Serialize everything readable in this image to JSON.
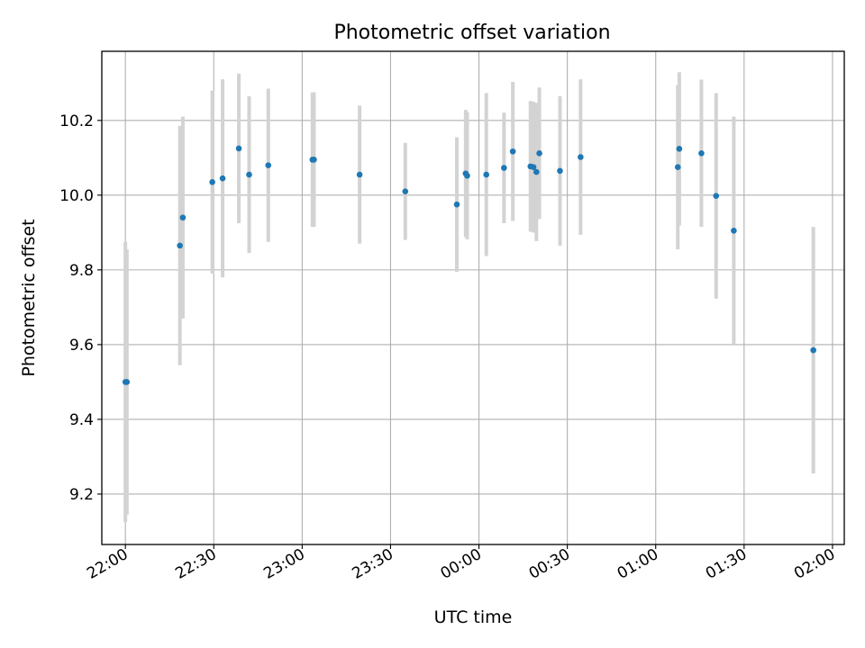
{
  "chart_data": {
    "type": "scatter",
    "title": "Photometric offset variation",
    "xlabel": "UTC time",
    "ylabel": "Photometric offset",
    "x_axis_type": "time",
    "xlim": [
      "21:52",
      "02:04"
    ],
    "ylim": [
      9.065,
      10.385
    ],
    "x_ticks": [
      "22:00",
      "22:30",
      "23:00",
      "23:30",
      "00:00",
      "00:30",
      "01:00",
      "01:30",
      "02:00"
    ],
    "y_ticks": [
      "9.2",
      "9.4",
      "9.6",
      "9.8",
      "10.0",
      "10.2"
    ],
    "grid": true,
    "legend": "none",
    "marker_color": "#1f77b4",
    "errorbar_color": "#d3d3d3",
    "points": [
      {
        "x": "22:00",
        "y": 9.5,
        "err": 0.375
      },
      {
        "x": "22:00:30",
        "y": 9.5,
        "err": 0.355
      },
      {
        "x": "22:18:30",
        "y": 9.865,
        "err": 0.32
      },
      {
        "x": "22:19:30",
        "y": 9.94,
        "err": 0.27
      },
      {
        "x": "22:29:30",
        "y": 10.035,
        "err": 0.245
      },
      {
        "x": "22:33",
        "y": 10.045,
        "err": 0.265
      },
      {
        "x": "22:38:30",
        "y": 10.125,
        "err": 0.2
      },
      {
        "x": "22:42",
        "y": 10.055,
        "err": 0.21
      },
      {
        "x": "22:48:30",
        "y": 10.08,
        "err": 0.205
      },
      {
        "x": "23:03:30",
        "y": 10.095,
        "err": 0.18
      },
      {
        "x": "23:04",
        "y": 10.095,
        "err": 0.18
      },
      {
        "x": "23:19:30",
        "y": 10.055,
        "err": 0.185
      },
      {
        "x": "23:35",
        "y": 10.01,
        "err": 0.13
      },
      {
        "x": "23:52:30",
        "y": 9.975,
        "err": 0.18
      },
      {
        "x": "23:55:30",
        "y": 10.058,
        "err": 0.17
      },
      {
        "x": "23:56",
        "y": 10.052,
        "err": 0.17
      },
      {
        "x": "00:02:30",
        "y": 10.055,
        "err": 0.218
      },
      {
        "x": "00:08:30",
        "y": 10.073,
        "err": 0.148
      },
      {
        "x": "00:11:30",
        "y": 10.117,
        "err": 0.186
      },
      {
        "x": "00:17:30",
        "y": 10.077,
        "err": 0.175
      },
      {
        "x": "00:18:30",
        "y": 10.075,
        "err": 0.175
      },
      {
        "x": "00:19:30",
        "y": 10.062,
        "err": 0.185
      },
      {
        "x": "00:20:30",
        "y": 10.112,
        "err": 0.176
      },
      {
        "x": "00:27:30",
        "y": 10.065,
        "err": 0.2
      },
      {
        "x": "00:34:30",
        "y": 10.102,
        "err": 0.208
      },
      {
        "x": "01:07:30",
        "y": 10.075,
        "err": 0.22
      },
      {
        "x": "01:08",
        "y": 10.124,
        "err": 0.205
      },
      {
        "x": "01:15:30",
        "y": 10.112,
        "err": 0.197
      },
      {
        "x": "01:20:30",
        "y": 9.998,
        "err": 0.275
      },
      {
        "x": "01:26:30",
        "y": 9.905,
        "err": 0.305
      },
      {
        "x": "01:53:30",
        "y": 9.585,
        "err": 0.33
      }
    ]
  }
}
